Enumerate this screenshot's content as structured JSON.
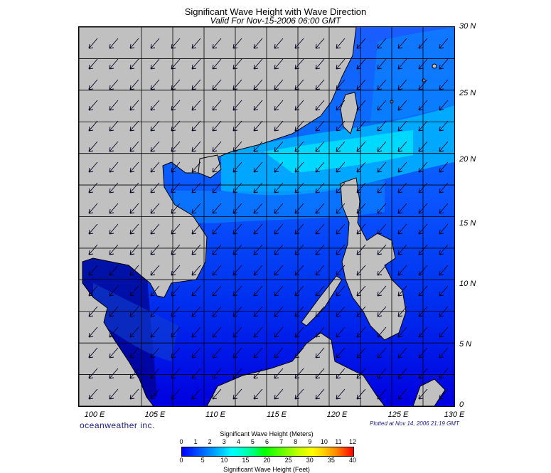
{
  "header": {
    "title": "Significant Wave Height with Wave Direction",
    "subtitle": "Valid For Nov-15-2006 06:00 GMT"
  },
  "map": {
    "lat_labels": [
      "30 N",
      "25 N",
      "20 N",
      "15 N",
      "10 N",
      "5 N",
      "0"
    ],
    "lon_labels": [
      "100 E",
      "105 E",
      "110 E",
      "115 E",
      "120 E",
      "125 E",
      "130 E"
    ],
    "land_color": "#c0c0c0",
    "background_land_color": "#c0c0c0",
    "sea_color_low": "#0000ff",
    "sea_color_mid": "#0066ff",
    "sea_color_high": "#00e5ff",
    "arrow_icon": "wave-direction-arrow-icon",
    "dominant_wave_direction": "from NE toward SW"
  },
  "footer": {
    "brand": "oceanweather inc.",
    "plotted": "Plotted at Nov 14, 2006 21:19 GMT"
  },
  "colorbar": {
    "title_meters": "Significant Wave Height (Meters)",
    "title_feet": "Significant Wave Height (Feet)",
    "meters_ticks": [
      "0",
      "1",
      "2",
      "3",
      "4",
      "5",
      "6",
      "7",
      "8",
      "9",
      "10",
      "11",
      "12"
    ],
    "feet_ticks": [
      "0",
      "5",
      "10",
      "15",
      "20",
      "25",
      "30",
      "35",
      "40"
    ],
    "color_start": "#0000ff",
    "color_end": "#ff0000"
  }
}
